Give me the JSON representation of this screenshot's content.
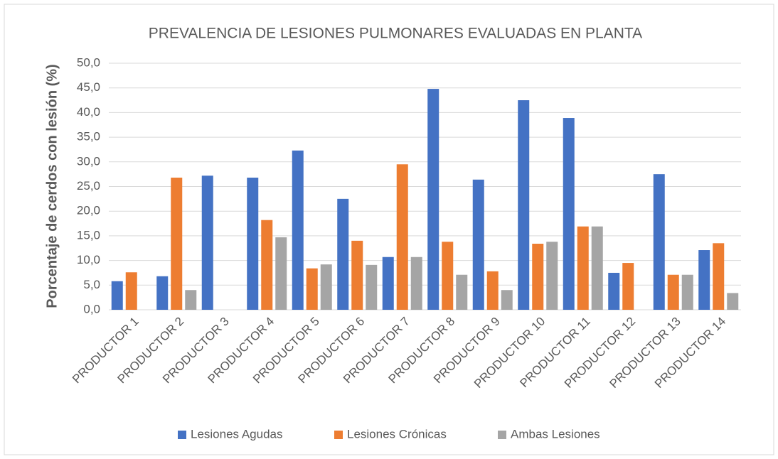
{
  "chart_data": {
    "type": "bar",
    "title": "PREVALENCIA DE LESIONES PULMONARES EVALUADAS EN PLANTA",
    "y_label": "Porcentaje de cerdos con lesión (%)",
    "categories": [
      "PRODUCTOR 1",
      "PRODUCTOR 2",
      "PRODUCTOR 3",
      "PRODUCTOR 4",
      "PRODUCTOR 5",
      "PRODUCTOR 6",
      "PRODUCTOR 7",
      "PRODUCTOR 8",
      "PRODUCTOR 9",
      "PRODUCTOR 10",
      "PRODUCTOR 11",
      "PRODUCTOR 12",
      "PRODUCTOR 13",
      "PRODUCTOR 14"
    ],
    "series": [
      {
        "name": "Lesiones Agudas",
        "color": "#4472c4",
        "values": [
          5.8,
          6.8,
          27.2,
          26.8,
          32.3,
          22.5,
          10.7,
          44.8,
          26.4,
          42.5,
          38.9,
          7.5,
          27.5,
          12.1
        ]
      },
      {
        "name": "Lesiones Crónicas",
        "color": "#ed7d31",
        "values": [
          7.6,
          26.8,
          0,
          18.2,
          8.4,
          14.0,
          29.5,
          13.8,
          7.8,
          13.4,
          16.9,
          9.5,
          7.1,
          13.5
        ]
      },
      {
        "name": "Ambas Lesiones",
        "color": "#a5a5a5",
        "values": [
          0,
          4.0,
          0,
          14.7,
          9.2,
          9.1,
          10.7,
          7.1,
          4.0,
          13.8,
          16.9,
          0,
          7.1,
          3.4
        ]
      }
    ],
    "ylim": [
      0,
      50
    ],
    "yticks": [
      {
        "value": 0,
        "label": "0,0"
      },
      {
        "value": 5,
        "label": "5,0"
      },
      {
        "value": 10,
        "label": "10,0"
      },
      {
        "value": 15,
        "label": "15,0"
      },
      {
        "value": 20,
        "label": "20,0"
      },
      {
        "value": 25,
        "label": "25,0"
      },
      {
        "value": 30,
        "label": "30,0"
      },
      {
        "value": 35,
        "label": "35,0"
      },
      {
        "value": 40,
        "label": "40,0"
      },
      {
        "value": 45,
        "label": "45,0"
      },
      {
        "value": 50,
        "label": "50,0"
      }
    ],
    "grid": true,
    "legend": "bottom"
  }
}
